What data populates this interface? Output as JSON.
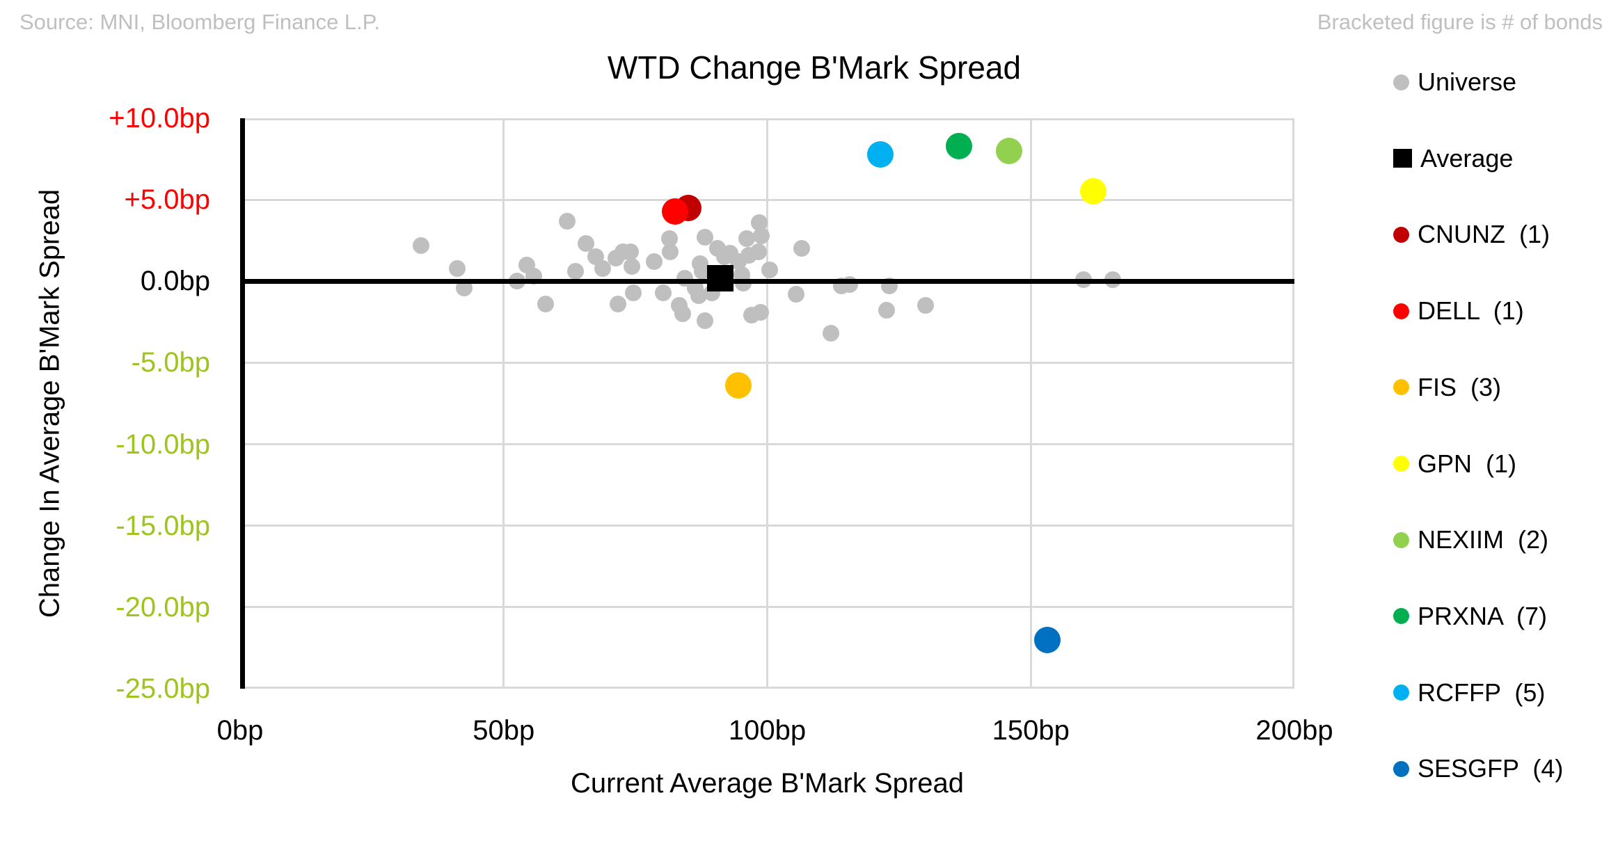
{
  "header": {
    "source": "Source: MNI, Bloomberg Finance L.P.",
    "note": "Bracketed figure is # of bonds"
  },
  "chart_data": {
    "type": "scatter",
    "title": "WTD Change B'Mark Spread",
    "xlabel": "Current Average B'Mark Spread",
    "ylabel": "Change In Average B'Mark Spread",
    "xlim": [
      0,
      200
    ],
    "ylim": [
      -25,
      10
    ],
    "grid": true,
    "zero_line": true,
    "legend_position": "right",
    "x_ticks": [
      {
        "value": 0,
        "label": "0bp"
      },
      {
        "value": 50,
        "label": "50bp"
      },
      {
        "value": 100,
        "label": "100bp"
      },
      {
        "value": 150,
        "label": "150bp"
      },
      {
        "value": 200,
        "label": "200bp"
      }
    ],
    "y_ticks": [
      {
        "value": 10,
        "label": "+10.0bp",
        "color": "#FF0000"
      },
      {
        "value": 5,
        "label": "+5.0bp",
        "color": "#FF0000"
      },
      {
        "value": 0,
        "label": "0.0bp",
        "color": "#000000"
      },
      {
        "value": -5,
        "label": "-5.0bp",
        "color": "#9EC41D"
      },
      {
        "value": -10,
        "label": "-10.0bp",
        "color": "#9EC41D"
      },
      {
        "value": -15,
        "label": "-15.0bp",
        "color": "#9EC41D"
      },
      {
        "value": -20,
        "label": "-20.0bp",
        "color": "#9EC41D"
      },
      {
        "value": -25,
        "label": "-25.0bp",
        "color": "#9EC41D"
      }
    ],
    "series": [
      {
        "id": "universe",
        "legend_label": "Universe",
        "color": "#BFBFBF",
        "marker": "circle",
        "size": 24,
        "points": [
          [
            34.3,
            2.2
          ],
          [
            41.2,
            0.8
          ],
          [
            42.5,
            -0.4
          ],
          [
            52.6,
            0.0
          ],
          [
            54.4,
            1.0
          ],
          [
            55.7,
            0.3
          ],
          [
            57.9,
            -1.4
          ],
          [
            62.1,
            3.7
          ],
          [
            63.6,
            0.6
          ],
          [
            65.6,
            2.3
          ],
          [
            67.5,
            1.5
          ],
          [
            68.8,
            0.8
          ],
          [
            71.3,
            1.4
          ],
          [
            71.7,
            -1.4
          ],
          [
            72.6,
            1.8
          ],
          [
            74.0,
            1.8
          ],
          [
            74.3,
            0.9
          ],
          [
            74.6,
            -0.7
          ],
          [
            78.6,
            1.2
          ],
          [
            80.3,
            -0.7
          ],
          [
            81.4,
            2.6
          ],
          [
            81.6,
            1.8
          ],
          [
            83.3,
            -1.5
          ],
          [
            84.0,
            -2.0
          ],
          [
            84.3,
            0.2
          ],
          [
            86.4,
            -0.4
          ],
          [
            87.0,
            -0.9
          ],
          [
            87.2,
            1.1
          ],
          [
            87.6,
            0.6
          ],
          [
            88.2,
            -2.4
          ],
          [
            88.2,
            2.7
          ],
          [
            89.5,
            -0.7
          ],
          [
            90.6,
            2.0
          ],
          [
            91.9,
            1.5
          ],
          [
            93.0,
            1.7
          ],
          [
            94.5,
            1.2
          ],
          [
            95.2,
            0.4
          ],
          [
            95.4,
            -0.1
          ],
          [
            96.1,
            2.6
          ],
          [
            96.5,
            1.6
          ],
          [
            97.0,
            -2.1
          ],
          [
            98.3,
            1.8
          ],
          [
            98.5,
            3.6
          ],
          [
            98.7,
            -1.9
          ],
          [
            98.9,
            2.8
          ],
          [
            100.4,
            0.7
          ],
          [
            105.5,
            -0.8
          ],
          [
            106.6,
            2.0
          ],
          [
            112.1,
            -3.2
          ],
          [
            114.0,
            -0.3
          ],
          [
            115.6,
            -0.2
          ],
          [
            122.7,
            -1.8
          ],
          [
            123.2,
            -0.3
          ],
          [
            130.0,
            -1.5
          ],
          [
            160.0,
            0.1
          ],
          [
            165.5,
            0.1
          ]
        ]
      },
      {
        "id": "average",
        "legend_label": "Average",
        "color": "#000000",
        "marker": "square",
        "size": 38,
        "points": [
          [
            91.1,
            0.2
          ]
        ]
      },
      {
        "id": "cnunz",
        "legend_label": "CNUNZ  (1)",
        "color": "#C00000",
        "marker": "circle",
        "size": 38,
        "points": [
          [
            85.0,
            4.5
          ]
        ]
      },
      {
        "id": "dell",
        "legend_label": "DELL  (1)",
        "color": "#FF0000",
        "marker": "circle",
        "size": 38,
        "points": [
          [
            82.5,
            4.3
          ]
        ]
      },
      {
        "id": "fis",
        "legend_label": "FIS  (3)",
        "color": "#FFC000",
        "marker": "circle",
        "size": 38,
        "points": [
          [
            94.5,
            -6.4
          ]
        ]
      },
      {
        "id": "gpn",
        "legend_label": "GPN  (1)",
        "color": "#FFFF00",
        "marker": "circle",
        "size": 38,
        "points": [
          [
            161.8,
            5.5
          ]
        ]
      },
      {
        "id": "nexiim",
        "legend_label": "NEXIIM  (2)",
        "color": "#92D050",
        "marker": "circle",
        "size": 38,
        "points": [
          [
            145.9,
            8.0
          ]
        ]
      },
      {
        "id": "prxna",
        "legend_label": "PRXNA  (7)",
        "color": "#00B050",
        "marker": "circle",
        "size": 38,
        "points": [
          [
            136.4,
            8.3
          ]
        ]
      },
      {
        "id": "rcffp",
        "legend_label": "RCFFP  (5)",
        "color": "#00B0F0",
        "marker": "circle",
        "size": 38,
        "points": [
          [
            121.4,
            7.8
          ]
        ]
      },
      {
        "id": "sesgfp",
        "legend_label": "SESGFP  (4)",
        "color": "#0070C0",
        "marker": "circle",
        "size": 38,
        "points": [
          [
            153.2,
            -22.0
          ]
        ]
      }
    ],
    "legend_geometry": {
      "first_center_y": 118,
      "row_spacing": 109.7
    }
  }
}
